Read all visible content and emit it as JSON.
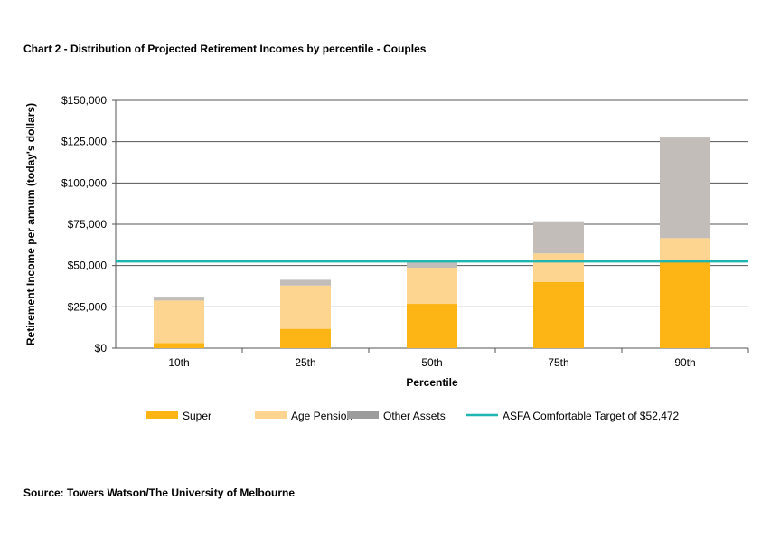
{
  "chart_data": {
    "type": "bar",
    "stacked": true,
    "title": "Chart 2 - Distribution of Projected Retirement Incomes by percentile - Couples",
    "xlabel": "Percentile",
    "ylabel": "Retirement Income per annum (today's dollars)",
    "categories": [
      "10th",
      "25th",
      "50th",
      "75th",
      "90th"
    ],
    "ylim": [
      0,
      150000
    ],
    "yticks": [
      0,
      25000,
      50000,
      75000,
      100000,
      125000,
      150000
    ],
    "ytick_labels": [
      "$0",
      "$25,000",
      "$50,000",
      "$75,000",
      "$100,000",
      "$125,000",
      "$150,000"
    ],
    "grid": true,
    "series": [
      {
        "name": "Super",
        "color": "#FDB515",
        "values": [
          3100,
          11700,
          26800,
          40100,
          52300
        ]
      },
      {
        "name": "Age Pension",
        "color": "#FDD590",
        "values": [
          25700,
          26200,
          21900,
          17200,
          14300
        ]
      },
      {
        "name": "Other Assets",
        "color": "#C2BDB8",
        "legend_color": "#9C9C9C",
        "values": [
          1800,
          3500,
          4700,
          19500,
          60900
        ]
      }
    ],
    "reference_line": {
      "name": "ASFA Comfortable Target of $52,472",
      "value": 52472,
      "color": "#1FB5B0"
    },
    "legend_position": "bottom"
  },
  "source": "Source: Towers Watson/The University of Melbourne"
}
